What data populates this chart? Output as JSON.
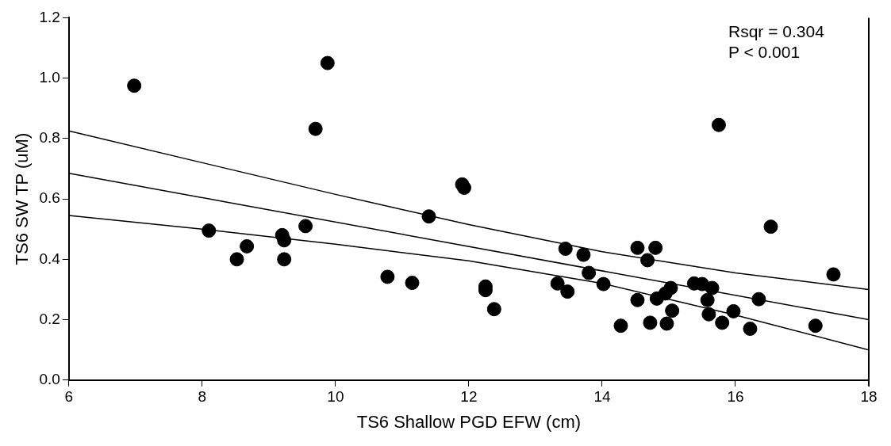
{
  "chart_data": {
    "type": "scatter",
    "xlabel": "TS6 Shallow PGD EFW (cm)",
    "ylabel": "TS6 SW TP (uM)",
    "annotations": [
      "Rsqr = 0.304",
      "P < 0.001"
    ],
    "xlim": [
      6,
      18
    ],
    "xticks": [
      6,
      8,
      10,
      12,
      14,
      16,
      18
    ],
    "ylim": [
      0,
      1.2
    ],
    "yticks": [
      {
        "value": 0,
        "label": "0.0"
      },
      {
        "value": 0.2,
        "label": "0.2"
      },
      {
        "value": 0.4,
        "label": "0.4"
      },
      {
        "value": 0.6,
        "label": "0.6"
      },
      {
        "value": 0.8,
        "label": "0.8"
      },
      {
        "value": 1,
        "label": "1.0"
      },
      {
        "value": 1.2,
        "label": "1.2"
      }
    ],
    "grid": false,
    "legend": false,
    "marker": "circle",
    "series": [
      {
        "color": "#000000",
        "x": [
          6.98,
          9.88,
          9.7,
          15.75,
          8.1,
          8.52,
          8.67,
          9.2,
          9.23,
          9.23,
          9.55,
          10.78,
          11.15,
          11.4,
          11.9,
          11.93,
          12.25,
          12.25,
          12.38,
          13.33,
          13.45,
          13.48,
          13.72,
          13.8,
          14.02,
          14.28,
          14.53,
          14.53,
          14.68,
          14.72,
          14.8,
          14.82,
          14.95,
          14.97,
          15.03,
          15.05,
          15.38,
          15.5,
          15.58,
          15.6,
          15.65,
          15.8,
          15.97,
          16.22,
          16.35,
          16.53,
          17.2,
          17.47
        ],
        "values": [
          0.975,
          1.05,
          0.832,
          0.845,
          0.495,
          0.4,
          0.443,
          0.48,
          0.463,
          0.4,
          0.51,
          0.342,
          0.322,
          0.542,
          0.648,
          0.637,
          0.31,
          0.298,
          0.235,
          0.32,
          0.435,
          0.293,
          0.415,
          0.355,
          0.318,
          0.18,
          0.438,
          0.265,
          0.397,
          0.19,
          0.438,
          0.27,
          0.287,
          0.187,
          0.305,
          0.23,
          0.32,
          0.318,
          0.265,
          0.218,
          0.305,
          0.19,
          0.228,
          0.17,
          0.268,
          0.508,
          0.18,
          0.35
        ]
      },
      {
        "type": "line",
        "color": "#000000",
        "marker": "none",
        "x": [
          6,
          18
        ],
        "values": [
          0.685,
          0.2
        ]
      },
      {
        "type": "line",
        "color": "#000000",
        "marker": "none",
        "x": [
          6,
          8,
          10,
          12,
          14,
          16,
          18
        ],
        "values": [
          0.825,
          0.72,
          0.615,
          0.515,
          0.425,
          0.355,
          0.3
        ]
      },
      {
        "type": "line",
        "color": "#000000",
        "marker": "none",
        "x": [
          6,
          8,
          10,
          12,
          14,
          16,
          18
        ],
        "values": [
          0.545,
          0.5,
          0.45,
          0.395,
          0.32,
          0.215,
          0.1
        ]
      }
    ]
  }
}
